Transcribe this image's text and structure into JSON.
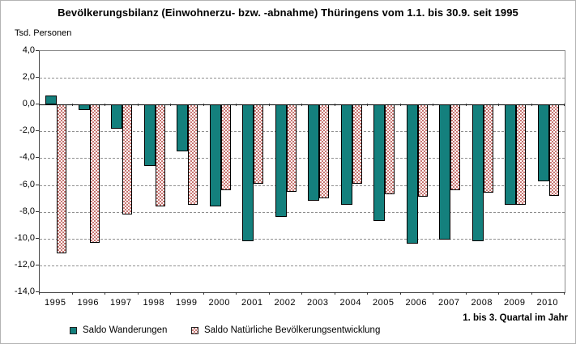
{
  "title": "Bevölkerungsbilanz (Einwohnerzu- bzw. -abnahme) Thüringens vom 1.1. bis 30.9. seit 1995",
  "y_axis_label": "Tsd. Personen",
  "footnote": "1. bis 3. Quartal im Jahr",
  "colors": {
    "wanderungen_fill": "#14807d",
    "natuerlich_fill": "#c87672",
    "natuerlich_bg": "#ffffff",
    "bar_border": "#000000",
    "grid": "#8f8f8f",
    "zero_line": "#000000"
  },
  "legend": [
    {
      "label": "Saldo Wanderungen",
      "swatch": "teal-solid"
    },
    {
      "label": "Saldo Natürliche Bevölkerungsentwicklung",
      "swatch": "red-white-checker"
    }
  ],
  "chart_data": {
    "type": "bar",
    "title": "Bevölkerungsbilanz (Einwohnerzu- bzw. -abnahme) Thüringens vom 1.1. bis 30.9. seit 1995",
    "xlabel": "1. bis 3. Quartal im Jahr",
    "ylabel": "Tsd. Personen",
    "ylim": [
      -14,
      4
    ],
    "ytick_step": 2,
    "ytick_labels": [
      "4,0",
      "2,0",
      "0,0",
      "-2,0",
      "-4,0",
      "-6,0",
      "-8,0",
      "-10,0",
      "-12,0",
      "-14,0"
    ],
    "grid": true,
    "legend_position": "bottom",
    "categories": [
      "1995",
      "1996",
      "1997",
      "1998",
      "1999",
      "2000",
      "2001",
      "2002",
      "2003",
      "2004",
      "2005",
      "2006",
      "2007",
      "2008",
      "2009",
      "2010"
    ],
    "series": [
      {
        "name": "Saldo Wanderungen",
        "values": [
          0.7,
          -0.4,
          -1.8,
          -4.6,
          -3.5,
          -7.6,
          -10.2,
          -8.4,
          -7.2,
          -7.5,
          -8.7,
          -10.4,
          -10.1,
          -10.2,
          -7.5,
          -5.7
        ]
      },
      {
        "name": "Saldo Natürliche Bevölkerungsentwicklung",
        "values": [
          -11.1,
          -10.3,
          -8.2,
          -7.6,
          -7.5,
          -6.4,
          -5.9,
          -6.5,
          -7.0,
          -5.9,
          -6.7,
          -6.9,
          -6.4,
          -6.6,
          -7.5,
          -6.8
        ]
      }
    ]
  }
}
